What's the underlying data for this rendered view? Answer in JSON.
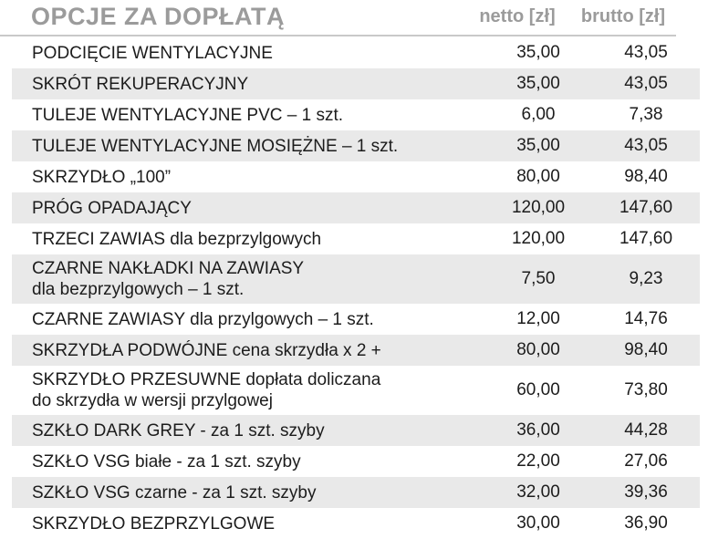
{
  "table": {
    "title": "OPCJE ZA DOPŁATĄ",
    "columns": [
      "netto [zł]",
      "brutto [zł]"
    ],
    "rows": [
      {
        "lines": [
          "PODCIĘCIE WENTYLACYJNE"
        ],
        "netto": "35,00",
        "brutto": "43,05"
      },
      {
        "lines": [
          "SKRÓT REKUPERACYJNY"
        ],
        "netto": "35,00",
        "brutto": "43,05"
      },
      {
        "lines": [
          "TULEJE WENTYLACYJNE PVC – 1 szt."
        ],
        "netto": "6,00",
        "brutto": "7,38"
      },
      {
        "lines": [
          "TULEJE WENTYLACYJNE MOSIĘŻNE – 1 szt."
        ],
        "netto": "35,00",
        "brutto": "43,05"
      },
      {
        "lines": [
          "SKRZYDŁO „100”"
        ],
        "netto": "80,00",
        "brutto": "98,40"
      },
      {
        "lines": [
          "PRÓG OPADAJĄCY"
        ],
        "netto": "120,00",
        "brutto": "147,60"
      },
      {
        "lines": [
          "TRZECI ZAWIAS dla bezprzylgowych"
        ],
        "netto": "120,00",
        "brutto": "147,60"
      },
      {
        "lines": [
          "CZARNE NAKŁADKI NA ZAWIASY",
          "dla bezprzylgowych – 1 szt."
        ],
        "netto": "7,50",
        "brutto": "9,23"
      },
      {
        "lines": [
          "CZARNE ZAWIASY dla przylgowych – 1 szt."
        ],
        "netto": "12,00",
        "brutto": "14,76"
      },
      {
        "lines": [
          "SKRZYDŁA PODWÓJNE cena skrzydła x 2 +"
        ],
        "netto": "80,00",
        "brutto": "98,40"
      },
      {
        "lines": [
          "SKRZYDŁO PRZESUWNE dopłata doliczana",
          "do skrzydła w wersji przylgowej"
        ],
        "netto": "60,00",
        "brutto": "73,80"
      },
      {
        "lines": [
          "SZKŁO DARK GREY - za 1 szt. szyby"
        ],
        "netto": "36,00",
        "brutto": "44,28"
      },
      {
        "lines": [
          "SZKŁO VSG białe - za 1 szt. szyby"
        ],
        "netto": "22,00",
        "brutto": "27,06"
      },
      {
        "lines": [
          "SZKŁO VSG czarne - za 1 szt. szyby"
        ],
        "netto": "32,00",
        "brutto": "39,36"
      },
      {
        "lines": [
          "SKRZYDŁO BEZPRZYLGOWE"
        ],
        "netto": "30,00",
        "brutto": "36,90"
      }
    ]
  },
  "colors": {
    "heading_gray": "#9b9b9b",
    "stripe_gray": "#e9e9e9",
    "rule_gray": "#c9c9c9",
    "text": "#1c1c1c"
  }
}
